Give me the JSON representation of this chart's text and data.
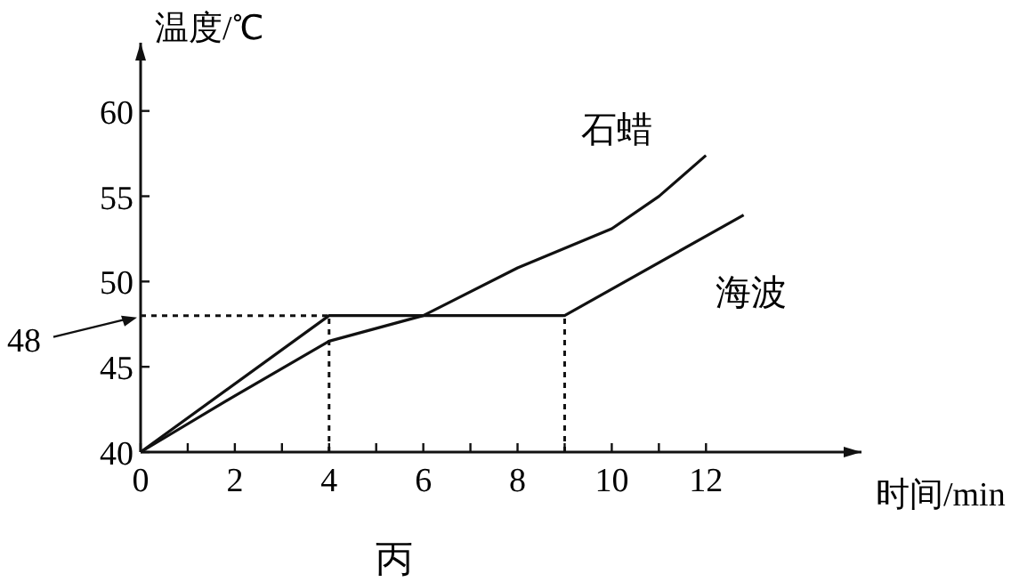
{
  "chart_data": {
    "type": "line",
    "xlabel": "时间/min",
    "ylabel": "温度/℃",
    "xlim": [
      0,
      15.3
    ],
    "ylim": [
      40,
      64
    ],
    "xticks": [
      0,
      {
        "value": 1,
        "label": null
      },
      2,
      {
        "value": 3,
        "label": null
      },
      4,
      {
        "value": 5,
        "label": null
      },
      6,
      {
        "value": 7,
        "label": null
      },
      8,
      {
        "value": 9,
        "label": null
      },
      10,
      {
        "value": 11,
        "label": null
      },
      12
    ],
    "yticks": [
      40,
      45,
      50,
      55,
      60
    ],
    "series": [
      {
        "name": "石蜡",
        "color": "#111111",
        "x": [
          0,
          2,
          4,
          6,
          8,
          10,
          11,
          12
        ],
        "values": [
          40,
          43.3,
          46.5,
          48,
          50.8,
          53.1,
          55,
          57.4
        ]
      },
      {
        "name": "海波",
        "color": "#111111",
        "x": [
          0,
          4,
          9,
          12.8
        ],
        "values": [
          40,
          48,
          48,
          53.9
        ]
      }
    ],
    "ref_lines": [
      {
        "axis": "y",
        "value": 48,
        "label": "48",
        "line_style": "dashed"
      },
      {
        "axis": "x",
        "value": 4,
        "line_style": "dashed"
      },
      {
        "axis": "x",
        "value": 9,
        "line_style": "dashed"
      }
    ],
    "annotations": [
      "丙"
    ],
    "grid": false,
    "marker": "none",
    "line_style": "solid"
  }
}
